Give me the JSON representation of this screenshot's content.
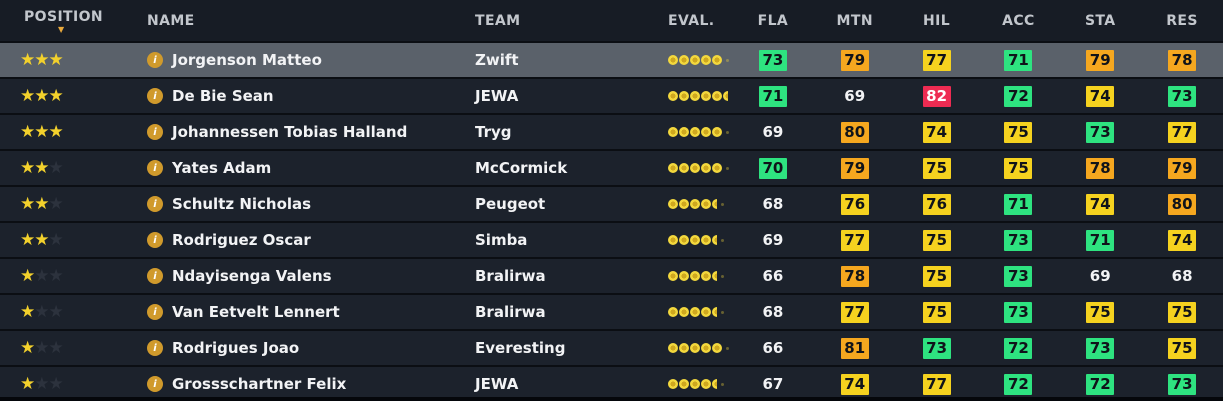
{
  "table": {
    "columns": [
      {
        "key": "position",
        "label": "POSITION",
        "sorted": "desc"
      },
      {
        "key": "name",
        "label": "NAME"
      },
      {
        "key": "team",
        "label": "TEAM"
      },
      {
        "key": "eval",
        "label": "EVAL."
      },
      {
        "key": "fla",
        "label": "FLA"
      },
      {
        "key": "mtn",
        "label": "MTN"
      },
      {
        "key": "hil",
        "label": "HIL"
      },
      {
        "key": "acc",
        "label": "ACC"
      },
      {
        "key": "sta",
        "label": "STA"
      },
      {
        "key": "res",
        "label": "RES"
      }
    ],
    "stars_max": 3,
    "eval_max": 6,
    "rows": [
      {
        "selected": true,
        "stars": 3,
        "name": "Jorgenson Matteo",
        "team": "Zwift",
        "eval": {
          "full": 5,
          "half": false
        },
        "stats": [
          {
            "v": "73",
            "c": "green"
          },
          {
            "v": "79",
            "c": "orange"
          },
          {
            "v": "77",
            "c": "yellow"
          },
          {
            "v": "71",
            "c": "green"
          },
          {
            "v": "79",
            "c": "orange"
          },
          {
            "v": "78",
            "c": "orange"
          }
        ]
      },
      {
        "selected": false,
        "stars": 3,
        "name": "De Bie Sean",
        "team": "JEWA",
        "eval": {
          "full": 5,
          "half": true
        },
        "stats": [
          {
            "v": "71",
            "c": "green"
          },
          {
            "v": "69",
            "c": "none"
          },
          {
            "v": "82",
            "c": "red"
          },
          {
            "v": "72",
            "c": "green"
          },
          {
            "v": "74",
            "c": "yellow"
          },
          {
            "v": "73",
            "c": "green"
          }
        ]
      },
      {
        "selected": false,
        "stars": 3,
        "name": "Johannessen Tobias Halland",
        "team": "Tryg",
        "eval": {
          "full": 5,
          "half": false
        },
        "stats": [
          {
            "v": "69",
            "c": "none"
          },
          {
            "v": "80",
            "c": "orange"
          },
          {
            "v": "74",
            "c": "yellow"
          },
          {
            "v": "75",
            "c": "yellow"
          },
          {
            "v": "73",
            "c": "green"
          },
          {
            "v": "77",
            "c": "yellow"
          }
        ]
      },
      {
        "selected": false,
        "stars": 2,
        "name": "Yates Adam",
        "team": "McCormick",
        "eval": {
          "full": 5,
          "half": false
        },
        "stats": [
          {
            "v": "70",
            "c": "green"
          },
          {
            "v": "79",
            "c": "orange"
          },
          {
            "v": "75",
            "c": "yellow"
          },
          {
            "v": "75",
            "c": "yellow"
          },
          {
            "v": "78",
            "c": "orange"
          },
          {
            "v": "79",
            "c": "orange"
          }
        ]
      },
      {
        "selected": false,
        "stars": 2,
        "name": "Schultz Nicholas",
        "team": "Peugeot",
        "eval": {
          "full": 4,
          "half": true
        },
        "stats": [
          {
            "v": "68",
            "c": "none"
          },
          {
            "v": "76",
            "c": "yellow"
          },
          {
            "v": "76",
            "c": "yellow"
          },
          {
            "v": "71",
            "c": "green"
          },
          {
            "v": "74",
            "c": "yellow"
          },
          {
            "v": "80",
            "c": "orange"
          }
        ]
      },
      {
        "selected": false,
        "stars": 2,
        "name": "Rodriguez Oscar",
        "team": "Simba",
        "eval": {
          "full": 4,
          "half": true
        },
        "stats": [
          {
            "v": "69",
            "c": "none"
          },
          {
            "v": "77",
            "c": "yellow"
          },
          {
            "v": "75",
            "c": "yellow"
          },
          {
            "v": "73",
            "c": "green"
          },
          {
            "v": "71",
            "c": "green"
          },
          {
            "v": "74",
            "c": "yellow"
          }
        ]
      },
      {
        "selected": false,
        "stars": 1,
        "name": "Ndayisenga Valens",
        "team": "Bralirwa",
        "eval": {
          "full": 4,
          "half": true
        },
        "stats": [
          {
            "v": "66",
            "c": "none"
          },
          {
            "v": "78",
            "c": "orange"
          },
          {
            "v": "75",
            "c": "yellow"
          },
          {
            "v": "73",
            "c": "green"
          },
          {
            "v": "69",
            "c": "none"
          },
          {
            "v": "68",
            "c": "none"
          }
        ]
      },
      {
        "selected": false,
        "stars": 1,
        "name": "Van Eetvelt Lennert",
        "team": "Bralirwa",
        "eval": {
          "full": 4,
          "half": true
        },
        "stats": [
          {
            "v": "68",
            "c": "none"
          },
          {
            "v": "77",
            "c": "yellow"
          },
          {
            "v": "75",
            "c": "yellow"
          },
          {
            "v": "73",
            "c": "green"
          },
          {
            "v": "75",
            "c": "yellow"
          },
          {
            "v": "75",
            "c": "yellow"
          }
        ]
      },
      {
        "selected": false,
        "stars": 1,
        "name": "Rodrigues Joao",
        "team": "Everesting",
        "eval": {
          "full": 5,
          "half": false
        },
        "stats": [
          {
            "v": "66",
            "c": "none"
          },
          {
            "v": "81",
            "c": "orange"
          },
          {
            "v": "73",
            "c": "green"
          },
          {
            "v": "72",
            "c": "green"
          },
          {
            "v": "73",
            "c": "green"
          },
          {
            "v": "75",
            "c": "yellow"
          }
        ]
      },
      {
        "selected": false,
        "stars": 1,
        "name": "Grossschartner Felix",
        "team": "JEWA",
        "eval": {
          "full": 4,
          "half": true
        },
        "stats": [
          {
            "v": "67",
            "c": "none"
          },
          {
            "v": "74",
            "c": "yellow"
          },
          {
            "v": "77",
            "c": "yellow"
          },
          {
            "v": "72",
            "c": "green"
          },
          {
            "v": "72",
            "c": "green"
          },
          {
            "v": "73",
            "c": "green"
          }
        ]
      }
    ]
  },
  "icons": {
    "info": "i",
    "star_full": "★",
    "star_empty": "★",
    "sort_desc": "▼"
  },
  "colors": {
    "stat_green": "#2ee380",
    "stat_yellow": "#f5d21f",
    "stat_orange": "#f5a71f",
    "stat_red": "#ee2b52",
    "row_bg": "#1c222c",
    "row_selected_bg": "#5a616a",
    "header_bg": "#171c25",
    "star_full": "#f3d12c",
    "eval_dot": "#f3d83d",
    "accent_gold": "#d09a2c"
  }
}
